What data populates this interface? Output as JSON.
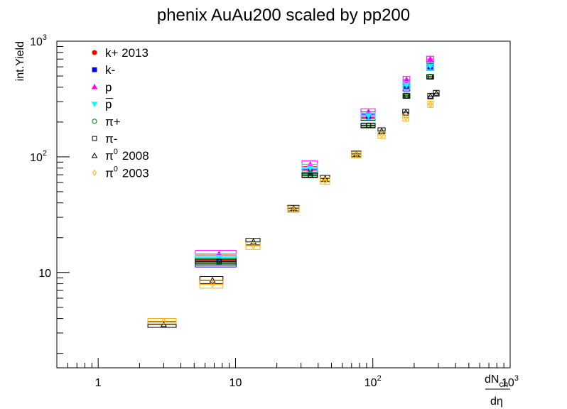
{
  "chart_data": {
    "type": "scatter",
    "title": "phenix AuAu200 scaled by pp200",
    "ylabel": "int.Yield",
    "xlabel": {
      "numerator_base": "dN",
      "numerator_sub": "ch",
      "denominator": "dη"
    },
    "x_scale": "log",
    "y_scale": "log",
    "xlim": [
      0.5,
      1000
    ],
    "ylim": [
      1.5,
      1000
    ],
    "x_ticks": [
      {
        "value": 1,
        "base": "1",
        "exp": ""
      },
      {
        "value": 10,
        "base": "10",
        "exp": ""
      },
      {
        "value": 100,
        "base": "10",
        "exp": "2"
      },
      {
        "value": 1000,
        "base": "10",
        "exp": "3"
      }
    ],
    "y_ticks": [
      {
        "value": 10,
        "base": "10",
        "exp": ""
      },
      {
        "value": 100,
        "base": "10",
        "exp": "2"
      },
      {
        "value": 1000,
        "base": "10",
        "exp": "3"
      }
    ],
    "legend_position": "top-left",
    "series": [
      {
        "name_base": "k+ 2013",
        "name_sup": "",
        "name_over": false,
        "color": "#ff0000",
        "marker": "circle-filled",
        "points": [
          [
            7.6,
            12.8,
            2.5,
            1.3
          ],
          [
            35.0,
            76,
            4.5,
            6
          ],
          [
            93,
            230,
            11,
            15
          ],
          [
            176,
            420,
            10,
            30
          ],
          [
            262,
            620,
            15,
            40
          ]
        ]
      },
      {
        "name_base": "k-",
        "name_sup": "",
        "name_over": false,
        "color": "#0000ff",
        "marker": "square-filled",
        "points": [
          [
            7.6,
            12.3,
            2.5,
            1.2
          ],
          [
            35.0,
            72,
            4.5,
            6
          ],
          [
            93,
            220,
            11,
            14
          ],
          [
            176,
            400,
            10,
            30
          ],
          [
            262,
            600,
            15,
            40
          ]
        ]
      },
      {
        "name_base": "p",
        "name_sup": "",
        "name_over": false,
        "color": "#ff00ff",
        "marker": "triangle-up-filled",
        "points": [
          [
            7.6,
            14.5,
            2.5,
            1.0
          ],
          [
            35.0,
            86,
            4.5,
            6
          ],
          [
            93,
            245,
            11,
            15
          ],
          [
            176,
            465,
            10,
            30
          ],
          [
            262,
            700,
            15,
            40
          ]
        ]
      },
      {
        "name_base": "p",
        "name_sup": "",
        "name_over": true,
        "color": "#00ffff",
        "marker": "triangle-down-filled",
        "points": [
          [
            7.6,
            13.5,
            2.5,
            1.0
          ],
          [
            35.0,
            80,
            4.5,
            6
          ],
          [
            93,
            225,
            11,
            14
          ],
          [
            176,
            415,
            10,
            30
          ],
          [
            262,
            605,
            15,
            40
          ]
        ]
      },
      {
        "name_base": "π+",
        "name_sup": "",
        "name_over": false,
        "color": "#008000",
        "marker": "circle-open",
        "points": [
          [
            7.6,
            12.6,
            2.5,
            0.6
          ],
          [
            35.0,
            70,
            4.5,
            3
          ],
          [
            93,
            188,
            11,
            8
          ],
          [
            176,
            340,
            10,
            15
          ],
          [
            262,
            495,
            15,
            20
          ]
        ]
      },
      {
        "name_base": "π-",
        "name_sup": "",
        "name_over": false,
        "color": "#000000",
        "marker": "square-open",
        "points": [
          [
            7.6,
            12.4,
            2.5,
            0.6
          ],
          [
            35.0,
            69,
            4.5,
            3
          ],
          [
            93,
            186,
            11,
            8
          ],
          [
            176,
            335,
            10,
            15
          ],
          [
            262,
            490,
            15,
            20
          ]
        ]
      },
      {
        "name_base": "π",
        "name_sup": "0",
        "name_over": false,
        "color": "#000000",
        "marker": "triangle-up-open",
        "points": [
          [
            3.0,
            3.55,
            0.7,
            0.2
          ],
          [
            6.8,
            8.6,
            1.3,
            0.6
          ],
          [
            13.5,
            18.5,
            1.6,
            1.2
          ],
          [
            26.5,
            36,
            2.5,
            2
          ],
          [
            45,
            65,
            3.5,
            4
          ],
          [
            76,
            106,
            6,
            6
          ],
          [
            116,
            168,
            7,
            10
          ],
          [
            174,
            243,
            9,
            14
          ],
          [
            263,
            335,
            12,
            18
          ],
          [
            290,
            355,
            14,
            20
          ]
        ]
      },
      {
        "name_base": "π",
        "name_sup": "0",
        "name_over": false,
        "color": "#ffb000",
        "marker": "diamond-open",
        "points": [
          [
            3.0,
            3.8,
            0.7,
            0.2
          ],
          [
            6.8,
            7.9,
            1.3,
            0.6
          ],
          [
            13.5,
            17.0,
            1.6,
            1.2
          ],
          [
            26.5,
            35,
            2.5,
            2
          ],
          [
            45,
            62,
            3.5,
            4
          ],
          [
            76,
            104,
            6,
            6
          ],
          [
            116,
            155,
            7,
            10
          ],
          [
            174,
            218,
            9,
            14
          ],
          [
            263,
            285,
            12,
            18
          ]
        ]
      }
    ],
    "legend_years": [
      "2013",
      "",
      "",
      "",
      "",
      "",
      "2008",
      "2003"
    ]
  }
}
